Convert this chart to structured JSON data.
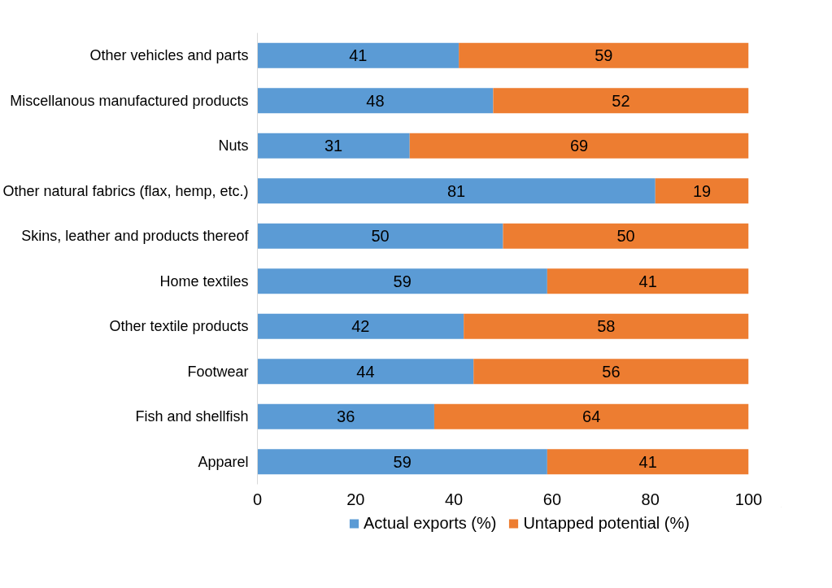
{
  "chart_data": {
    "type": "bar",
    "orientation": "horizontal",
    "stacked": true,
    "data_labels": true,
    "legend": "bottom",
    "grid": false,
    "categories": [
      "Other vehicles and parts",
      "Miscellanous manufactured products",
      "Nuts",
      "Other natural fabrics (flax, hemp, etc.)",
      "Skins, leather and products thereof",
      "Home textiles",
      "Other textile products",
      "Footwear",
      "Fish and shellfish",
      "Apparel"
    ],
    "series": [
      {
        "name": "Actual exports (%)",
        "color": "#5b9bd5",
        "values": [
          41,
          48,
          31,
          81,
          50,
          59,
          42,
          44,
          36,
          59
        ]
      },
      {
        "name": "Untapped potential (%)",
        "color": "#ed7d31",
        "values": [
          59,
          52,
          69,
          19,
          50,
          41,
          58,
          56,
          64,
          41
        ]
      }
    ],
    "xlim": [
      0,
      100
    ],
    "xticks": [
      0,
      20,
      40,
      60,
      80,
      100
    ]
  }
}
